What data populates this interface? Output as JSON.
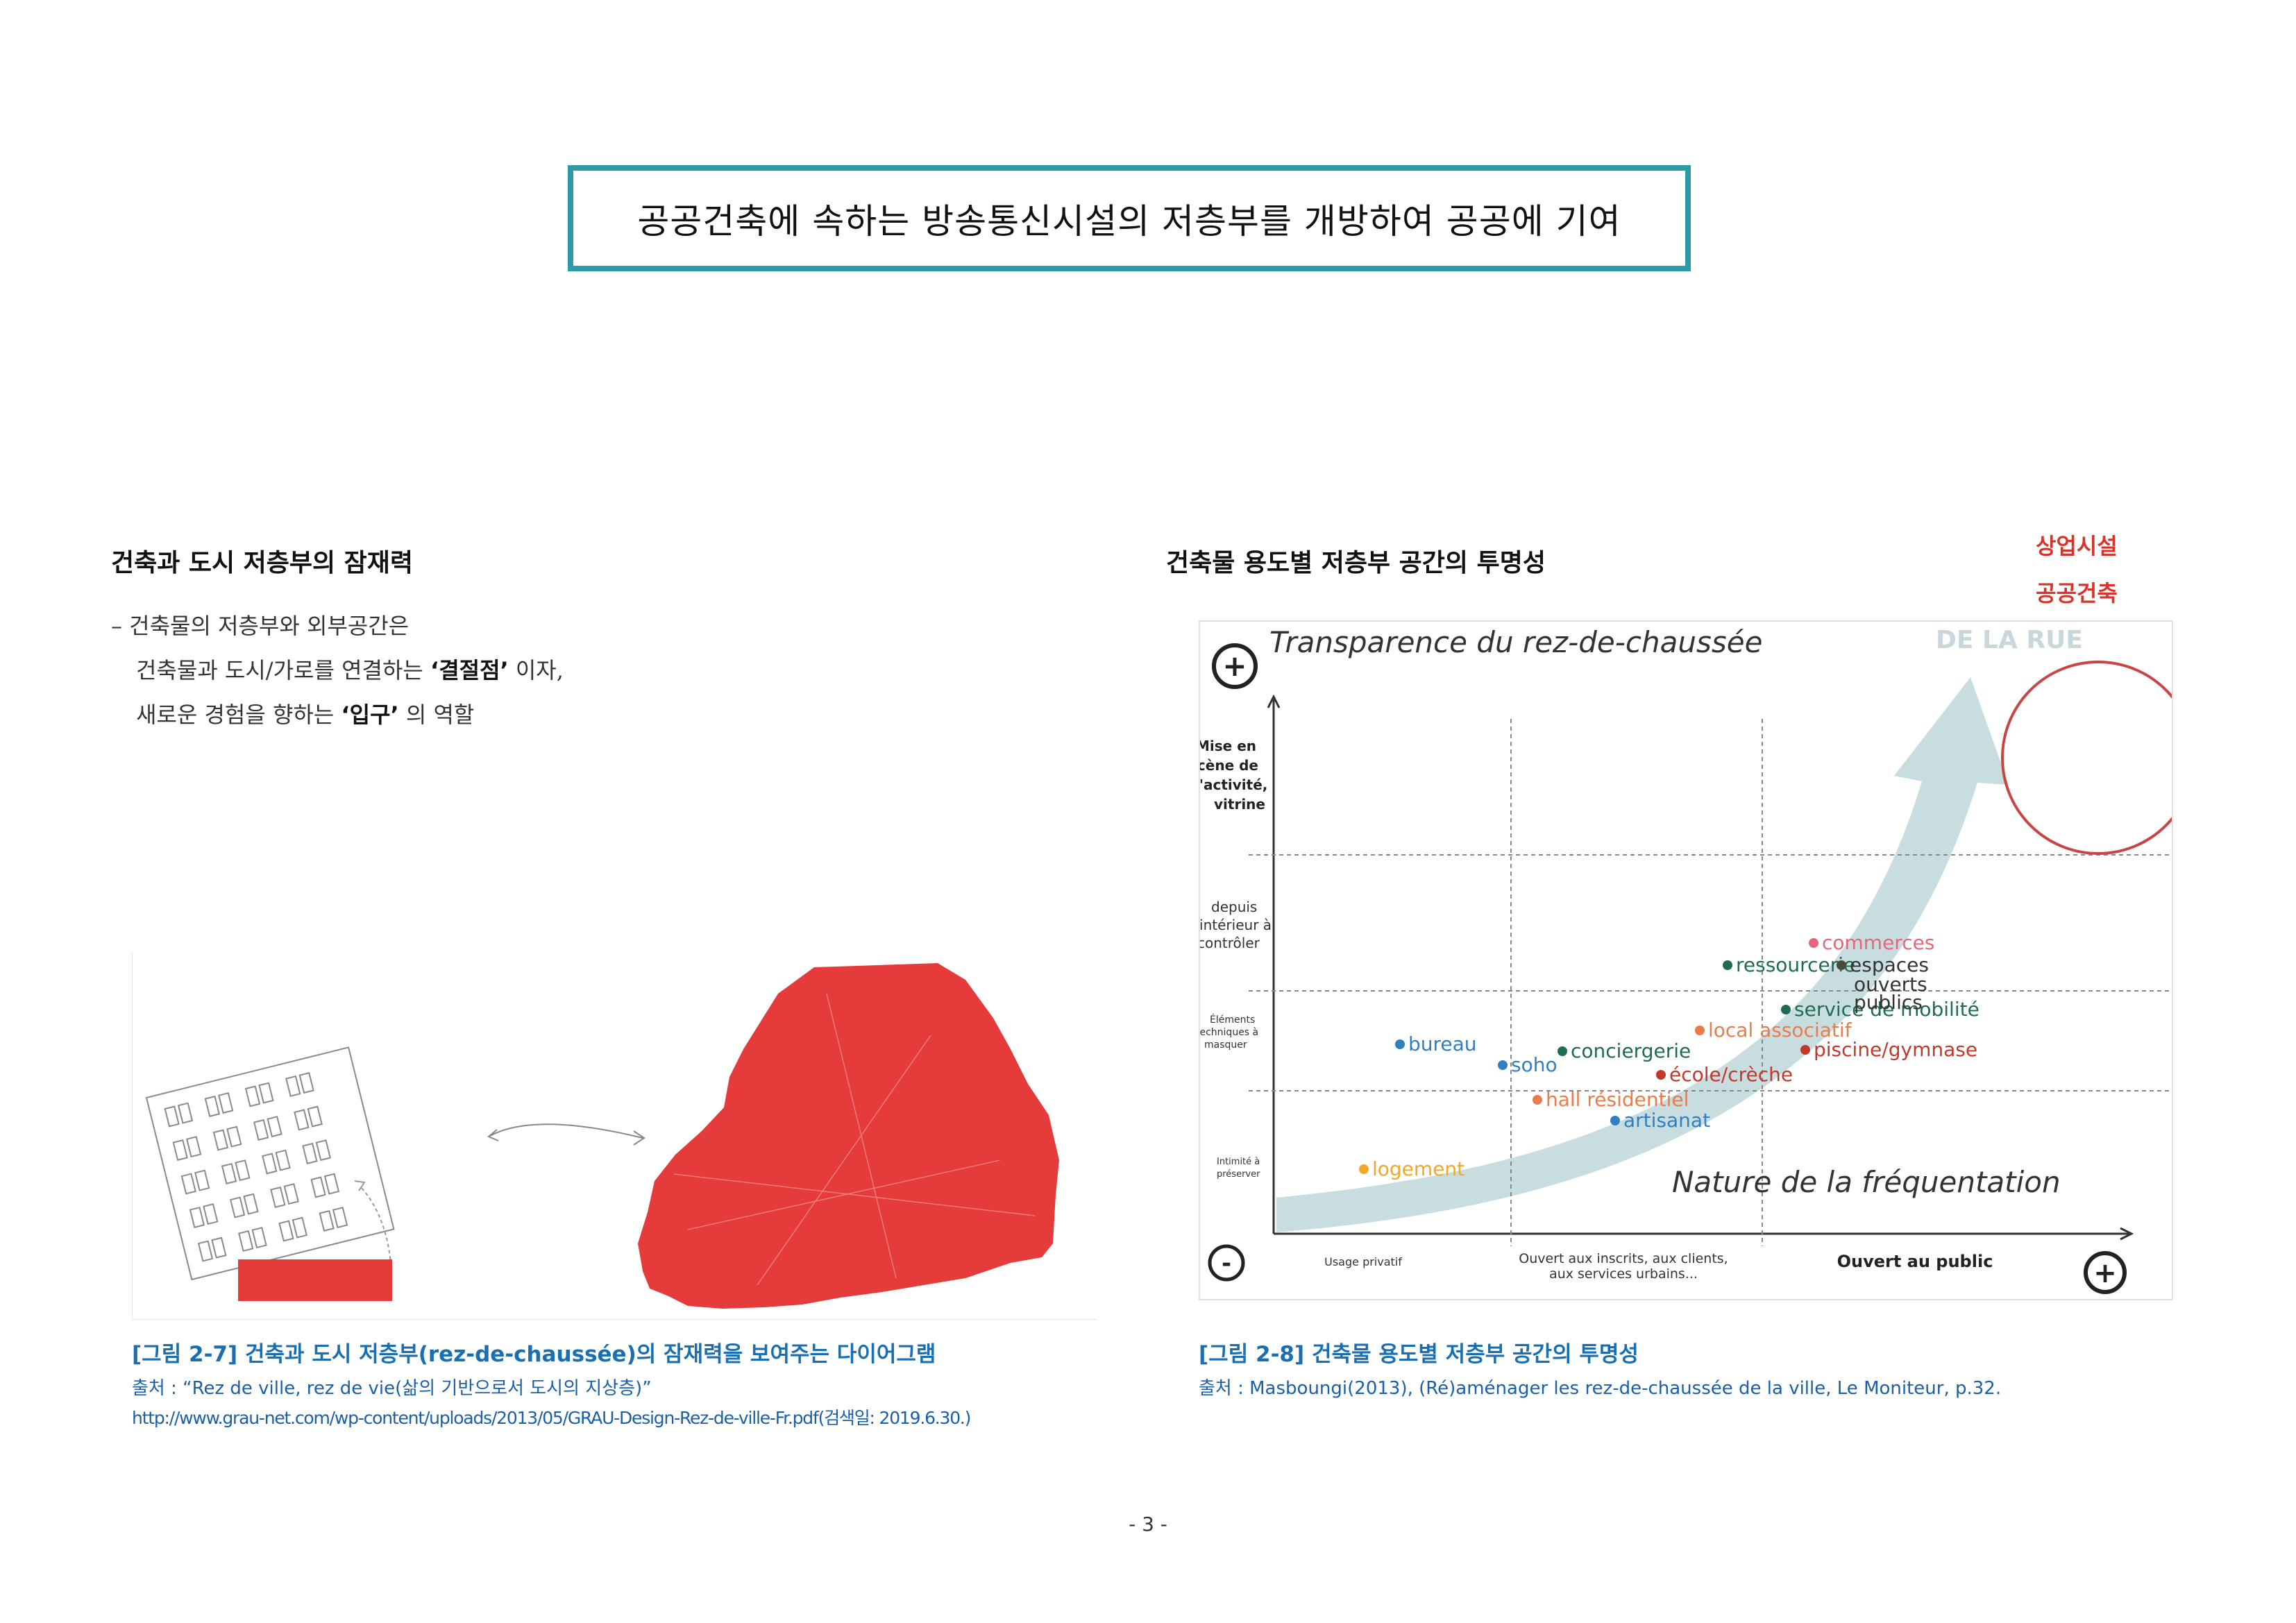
{
  "header": {
    "title": "공공건축에 속하는 방송통신시설의 저층부를 개방하여 공공에 기여"
  },
  "left_section": {
    "heading": "건축과 도시 저층부의 잠재력",
    "line1": "– 건축물의 저층부와 외부공간은",
    "line2_pre": "건축물과 도시/가로를 연결하는",
    "line2_bold": "‘결절점’",
    "line2_post": "이자,",
    "line3_pre": "새로운 경험을 향하는",
    "line3_bold": "‘입구’",
    "line3_post": "의 역할",
    "figure": {
      "caption": "[그림 2-7] 건축과 도시 저층부(rez-de-chaussée)의 잠재력을 보여주는 다이어그램",
      "source": "출처 : “Rez de ville, rez de vie(삶의 기반으로서 도시의 지상층)”",
      "url": "http://www.grau-net.com/wp-content/uploads/2013/05/GRAU-Design-Rez-de-ville-Fr.pdf(검색일: 2019.6.30.)"
    }
  },
  "right_section": {
    "heading": "건축물 용도별 저층부 공간의 투명성",
    "legend": [
      "상업시설",
      "공공건축"
    ],
    "figure": {
      "title": "Transparence du rez-de-chaussée",
      "corner_text": "DE LA RUE",
      "plus_top": "+",
      "plus_bottom": "+",
      "minus": "-",
      "x_axis_title": "Nature de la fréquentation",
      "x_labels": [
        "Usage privatif",
        "Ouvert aux inscrits, aux clients,",
        "aux services urbains...",
        "Ouvert au public"
      ],
      "y_labels": [
        [
          "Mise en",
          "scène de",
          "l'activité,",
          "vitrine"
        ],
        [
          "depuis",
          "l'intérieur à",
          "contrôler"
        ],
        [
          "Éléments",
          "techniques à",
          "masquer"
        ],
        [
          "Intimité à",
          "préserver"
        ]
      ],
      "points": [
        {
          "label": "logement",
          "color": "#f0a82a"
        },
        {
          "label": "artisanat",
          "color": "#2f7fc4"
        },
        {
          "label": "hall résidentiel",
          "color": "#ea7c4b"
        },
        {
          "label": "soho",
          "color": "#2f7fc4"
        },
        {
          "label": "bureau",
          "color": "#2f7fc4"
        },
        {
          "label": "conciergerie",
          "color": "#1e6d4e"
        },
        {
          "label": "école/crèche",
          "color": "#c0392b"
        },
        {
          "label": "piscine/gymnase",
          "color": "#c0392b"
        },
        {
          "label": "local associatif",
          "color": "#ea7c4b"
        },
        {
          "label": "service de mobilité",
          "color": "#1e6d4e"
        },
        {
          "label": "ressourcerie",
          "color": "#1e6d4e"
        },
        {
          "label": "commerces",
          "color": "#e5677a"
        },
        {
          "label": "espaces",
          "color": "#4a4a3a"
        },
        {
          "label": "ouverts",
          "color": "#4a4a3a"
        },
        {
          "label": "publics",
          "color": "#4a4a3a"
        }
      ],
      "caption": "[그림 2-8] 건축물 용도별 저층부 공간의 투명성",
      "source": "출처 : Masboungi(2013), (Ré)aménager les rez-de-chaussée de la ville, Le Moniteur, p.32."
    }
  },
  "page_number": "- 3 -",
  "colors": {
    "teal_border": "#2d9aa8",
    "red_fill": "#e53b3b",
    "caption_blue": "#1a6fb3",
    "legend_red": "#d9342b",
    "arrow": "#c8dde0"
  }
}
